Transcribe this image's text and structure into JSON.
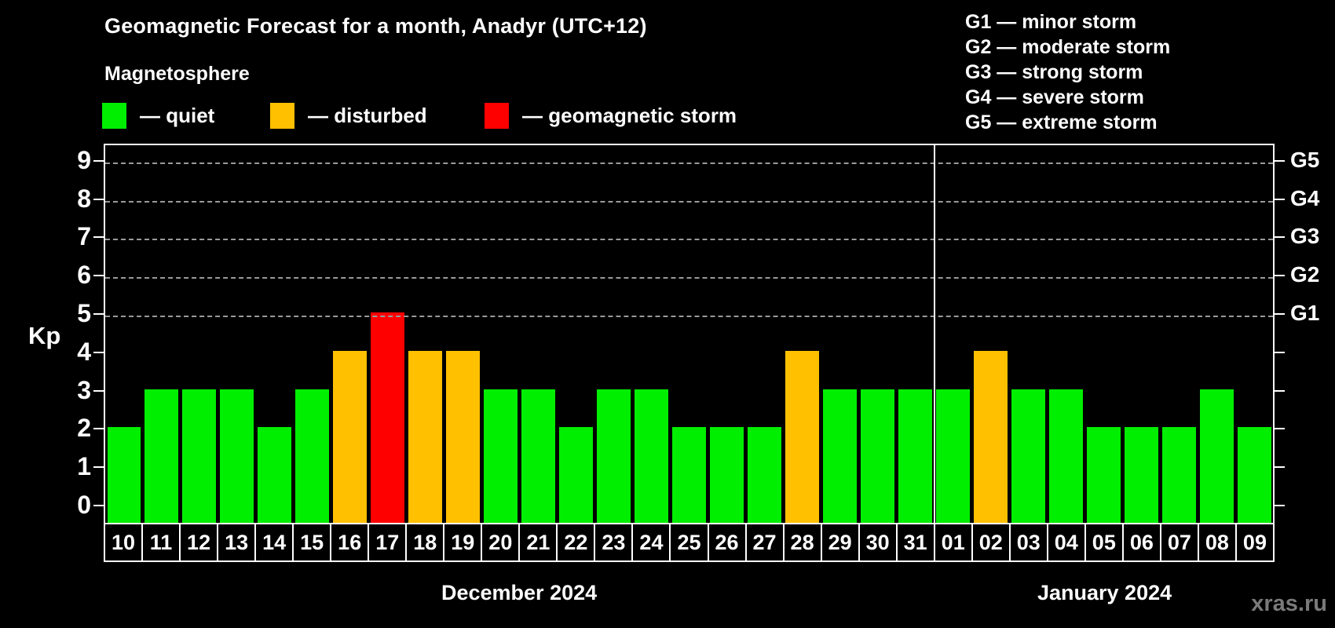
{
  "header": {
    "title": "Geomagnetic Forecast for a month, Anadyr (UTC+12)",
    "subtitle": "Magnetosphere"
  },
  "legend": {
    "items": [
      {
        "name": "quiet",
        "label": "— quiet",
        "color": "#00ee00"
      },
      {
        "name": "disturbed",
        "label": "— disturbed",
        "color": "#ffc000"
      },
      {
        "name": "geomagnetic-storm",
        "label": "— geomagnetic storm",
        "color": "#ff0000"
      }
    ]
  },
  "g_scale_legend": [
    "G1 — minor storm",
    "G2 — moderate storm",
    "G3 — strong storm",
    "G4 — severe storm",
    "G5 — extreme storm"
  ],
  "watermark": "xras.ru",
  "colors": {
    "background": "#000000",
    "axis": "#ffffff",
    "grid": "#9a9a9a",
    "quiet": "#00ee00",
    "disturbed": "#ffc000",
    "storm": "#ff0000",
    "watermark": "#7a7a7a"
  },
  "chart_data": {
    "type": "bar",
    "title": "Geomagnetic Forecast for a month, Anadyr (UTC+12)",
    "subtitle": "Magnetosphere",
    "ylabel": "Kp",
    "ylim": [
      0,
      9
    ],
    "y_ticks": [
      0,
      1,
      2,
      3,
      4,
      5,
      6,
      7,
      8,
      9
    ],
    "grid": "dashed horizontal lines at Kp 5-9 only",
    "grid_levels": [
      5,
      6,
      7,
      8,
      9
    ],
    "right_axis_labels": [
      {
        "label": "G1",
        "kp": 5
      },
      {
        "label": "G2",
        "kp": 6
      },
      {
        "label": "G3",
        "kp": 7
      },
      {
        "label": "G4",
        "kp": 8
      },
      {
        "label": "G5",
        "kp": 9
      }
    ],
    "legend_position": "top-left",
    "categories": [
      "10",
      "11",
      "12",
      "13",
      "14",
      "15",
      "16",
      "17",
      "18",
      "19",
      "20",
      "21",
      "22",
      "23",
      "24",
      "25",
      "26",
      "27",
      "28",
      "29",
      "30",
      "31",
      "01",
      "02",
      "03",
      "04",
      "05",
      "06",
      "07",
      "08",
      "09"
    ],
    "values": [
      2,
      3,
      3,
      3,
      2,
      3,
      4,
      5,
      4,
      4,
      3,
      3,
      2,
      3,
      3,
      2,
      2,
      2,
      4,
      3,
      3,
      3,
      3,
      4,
      3,
      3,
      2,
      2,
      2,
      3,
      2
    ],
    "color_rule": {
      "disturbed_min": 4,
      "storm_min": 5
    },
    "months": [
      {
        "label": "December 2024",
        "days": 22
      },
      {
        "label": "January 2024",
        "days": 9
      }
    ]
  }
}
